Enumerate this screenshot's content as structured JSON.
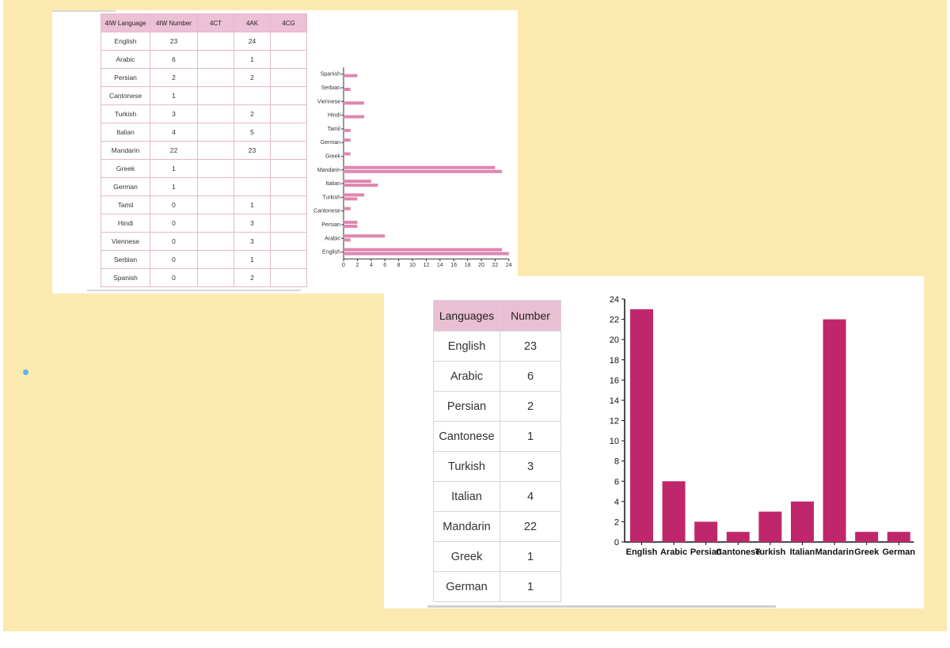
{
  "colors": {
    "background": "#fbe9b0",
    "table_header": "#ecc0d5",
    "hbar_color": "#de86b0",
    "vbar_color": "#c0276a"
  },
  "table1": {
    "headers": [
      "4IW Language",
      "4IW Number",
      "4CT",
      "4AK",
      "4CG"
    ],
    "rows": [
      [
        "English",
        "23",
        "",
        "24",
        ""
      ],
      [
        "Arabic",
        "6",
        "",
        "1",
        ""
      ],
      [
        "Persian",
        "2",
        "",
        "2",
        ""
      ],
      [
        "Cantonese",
        "1",
        "",
        "",
        ""
      ],
      [
        "Turkish",
        "3",
        "",
        "2",
        ""
      ],
      [
        "Italian",
        "4",
        "",
        "5",
        ""
      ],
      [
        "Mandarin",
        "22",
        "",
        "23",
        ""
      ],
      [
        "Greek",
        "1",
        "",
        "",
        ""
      ],
      [
        "German",
        "1",
        "",
        "",
        ""
      ],
      [
        "Tamil",
        "0",
        "",
        "1",
        ""
      ],
      [
        "Hindi",
        "0",
        "",
        "3",
        ""
      ],
      [
        "Viennese",
        "0",
        "",
        "3",
        ""
      ],
      [
        "Serbian",
        "0",
        "",
        "1",
        ""
      ],
      [
        "Spanish",
        "0",
        "",
        "2",
        ""
      ]
    ]
  },
  "table2": {
    "headers": [
      "Languages",
      "Number"
    ],
    "rows": [
      [
        "English",
        "23"
      ],
      [
        "Arabic",
        "6"
      ],
      [
        "Persian",
        "2"
      ],
      [
        "Cantonese",
        "1"
      ],
      [
        "Turkish",
        "3"
      ],
      [
        "Italian",
        "4"
      ],
      [
        "Mandarin",
        "22"
      ],
      [
        "Greek",
        "1"
      ],
      [
        "German",
        "1"
      ]
    ]
  },
  "chart_data": [
    {
      "type": "bar",
      "orientation": "horizontal",
      "categories": [
        "Spanish",
        "Serbian",
        "Viennese",
        "Hindi",
        "Tamil",
        "German",
        "Greek",
        "Mandarin",
        "Italian",
        "Turkish",
        "Cantonese",
        "Persian",
        "Arabic",
        "English"
      ],
      "series": [
        {
          "values": [
            0,
            0,
            0,
            0,
            0,
            1,
            1,
            22,
            4,
            3,
            1,
            2,
            6,
            23
          ]
        },
        {
          "values": [
            2,
            1,
            3,
            3,
            1,
            0,
            0,
            23,
            5,
            2,
            0,
            2,
            1,
            24
          ]
        }
      ],
      "xticks": [
        0,
        2,
        4,
        6,
        8,
        10,
        12,
        14,
        16,
        18,
        20,
        22,
        24
      ],
      "xlim": [
        0,
        24
      ],
      "grid": false,
      "color": "#de86b0"
    },
    {
      "type": "bar",
      "orientation": "vertical",
      "categories": [
        "English",
        "Arabic",
        "Persian",
        "Cantonese",
        "Turkish",
        "Italian",
        "Mandarin",
        "Greek",
        "German"
      ],
      "values": [
        23,
        6,
        2,
        1,
        3,
        4,
        22,
        1,
        1
      ],
      "yticks": [
        0,
        2,
        4,
        6,
        8,
        10,
        12,
        14,
        16,
        18,
        20,
        22,
        24
      ],
      "ylim": [
        0,
        24
      ],
      "grid": false,
      "color": "#c0276a"
    }
  ]
}
